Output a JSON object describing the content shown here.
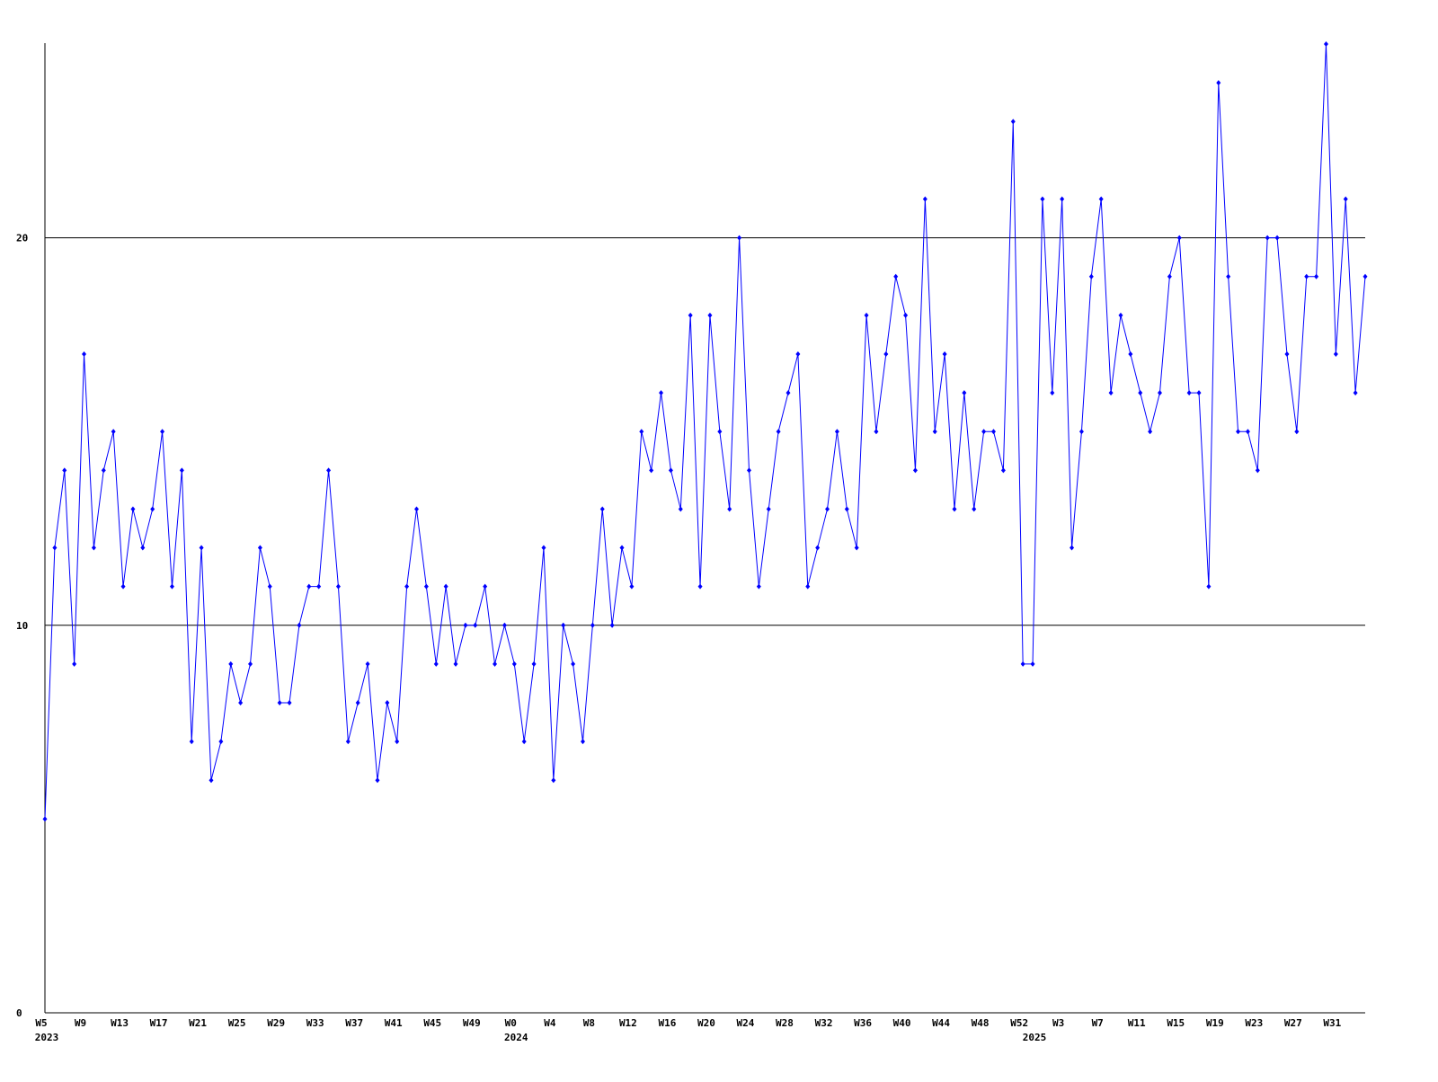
{
  "chart_data": {
    "type": "line",
    "categories": [
      "W5",
      null,
      null,
      null,
      "W9",
      null,
      null,
      null,
      "W13",
      null,
      null,
      null,
      "W17",
      null,
      null,
      null,
      "W21",
      null,
      null,
      null,
      "W25",
      null,
      null,
      null,
      "W29",
      null,
      null,
      null,
      "W33",
      null,
      null,
      null,
      "W37",
      null,
      null,
      null,
      "W41",
      null,
      null,
      null,
      "W45",
      null,
      null,
      null,
      "W49",
      null,
      null,
      null,
      "W0",
      null,
      null,
      null,
      "W4",
      null,
      null,
      null,
      "W8",
      null,
      null,
      null,
      "W12",
      null,
      null,
      null,
      "W16",
      null,
      null,
      null,
      "W20",
      null,
      null,
      null,
      "W24",
      null,
      null,
      null,
      "W28",
      null,
      null,
      null,
      "W32",
      null,
      null,
      null,
      "W36",
      null,
      null,
      null,
      "W40",
      null,
      null,
      null,
      "W44",
      null,
      null,
      null,
      "W48",
      null,
      null,
      null,
      "W52",
      null,
      null,
      null,
      "W3",
      null,
      null,
      null,
      "W7",
      null,
      null,
      null,
      "W11",
      null,
      null,
      null,
      "W15",
      null,
      null,
      null,
      "W19",
      null,
      null,
      null,
      "W23",
      null,
      null,
      null,
      "W27",
      null,
      null,
      null,
      "W31",
      null,
      null,
      null
    ],
    "category_years": [
      "2023",
      null,
      null,
      null,
      null,
      null,
      null,
      null,
      null,
      null,
      null,
      null,
      null,
      null,
      null,
      null,
      null,
      null,
      null,
      null,
      null,
      null,
      null,
      null,
      null,
      null,
      null,
      null,
      null,
      null,
      null,
      null,
      null,
      null,
      null,
      null,
      null,
      null,
      null,
      null,
      null,
      null,
      null,
      null,
      null,
      null,
      null,
      null,
      "2024",
      null,
      null,
      null,
      null,
      null,
      null,
      null,
      null,
      null,
      null,
      null,
      null,
      null,
      null,
      null,
      null,
      null,
      null,
      null,
      null,
      null,
      null,
      null,
      null,
      null,
      null,
      null,
      null,
      null,
      null,
      null,
      null,
      null,
      null,
      null,
      null,
      null,
      null,
      null,
      null,
      null,
      null,
      null,
      null,
      null,
      null,
      null,
      null,
      null,
      null,
      null,
      null,
      "2025",
      null,
      null,
      null,
      null,
      null,
      null,
      null,
      null,
      null,
      null,
      null,
      null,
      null,
      null,
      null,
      null,
      null,
      null,
      null,
      null,
      null,
      null,
      null,
      null,
      null,
      null,
      null,
      null,
      null,
      null,
      null,
      null,
      null,
      null
    ],
    "values": [
      5,
      12,
      14,
      9,
      17,
      12,
      14,
      15,
      11,
      13,
      12,
      13,
      15,
      11,
      14,
      7,
      12,
      6,
      7,
      9,
      8,
      9,
      12,
      11,
      8,
      8,
      10,
      11,
      11,
      14,
      11,
      7,
      8,
      9,
      6,
      8,
      7,
      11,
      13,
      11,
      9,
      11,
      9,
      10,
      10,
      11,
      9,
      10,
      9,
      7,
      9,
      12,
      6,
      10,
      9,
      7,
      10,
      13,
      10,
      12,
      11,
      15,
      14,
      16,
      14,
      13,
      18,
      11,
      18,
      15,
      13,
      20,
      14,
      11,
      13,
      15,
      16,
      17,
      11,
      12,
      13,
      15,
      13,
      12,
      18,
      15,
      17,
      19,
      18,
      14,
      21,
      15,
      17,
      13,
      16,
      13,
      15,
      15,
      14,
      23,
      9,
      9,
      21,
      16,
      21,
      12,
      15,
      19,
      21,
      16,
      18,
      17,
      16,
      15,
      16,
      19,
      20,
      16,
      16,
      11,
      24,
      19,
      15,
      15,
      14,
      20,
      20,
      17,
      15,
      19,
      19,
      25,
      17,
      21,
      16,
      19
    ],
    "color": "#0000ff",
    "ylim": [
      0,
      25
    ],
    "yticks": [
      0,
      10,
      20
    ],
    "grid": true
  }
}
